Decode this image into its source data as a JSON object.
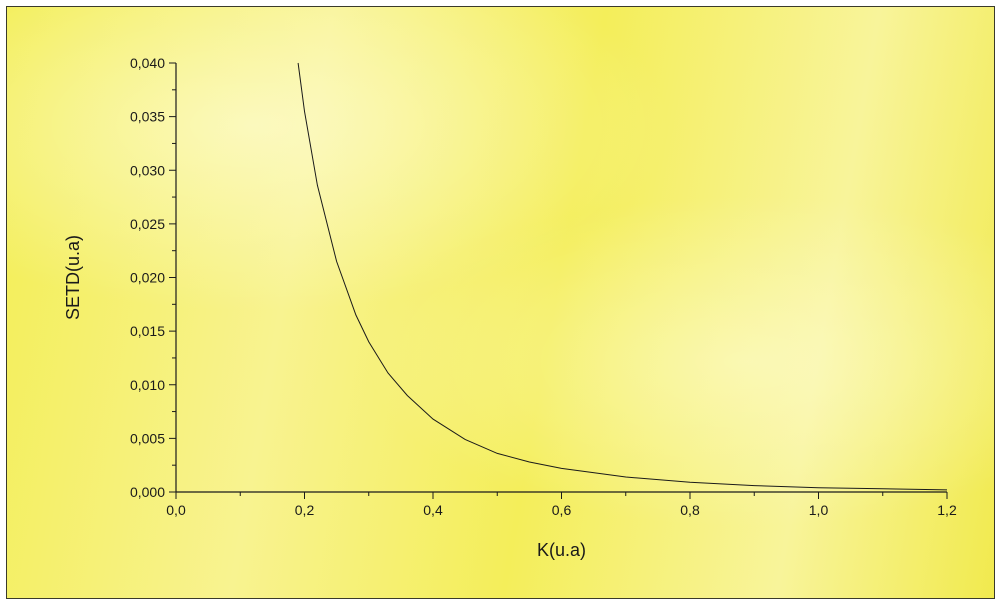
{
  "chart_data": {
    "type": "line",
    "title": "",
    "xlabel": "K(u.a)",
    "ylabel": "SETD(u.a)",
    "xlim": [
      0.0,
      1.2
    ],
    "ylim": [
      0.0,
      0.04
    ],
    "grid": false,
    "legend": "none",
    "x_ticks": [
      0.0,
      0.2,
      0.4,
      0.6,
      0.8,
      1.0,
      1.2
    ],
    "x_tick_labels": [
      "0,0",
      "0,2",
      "0,4",
      "0,6",
      "0,8",
      "1,0",
      "1,2"
    ],
    "y_ticks": [
      0.0,
      0.005,
      0.01,
      0.015,
      0.02,
      0.025,
      0.03,
      0.035,
      0.04
    ],
    "y_tick_labels": [
      "0,000",
      "0,005",
      "0,010",
      "0,015",
      "0,020",
      "0,025",
      "0,030",
      "0,035",
      "0,040"
    ],
    "series": [
      {
        "x": [
          0.19,
          0.2,
          0.22,
          0.25,
          0.28,
          0.3,
          0.33,
          0.36,
          0.4,
          0.45,
          0.5,
          0.55,
          0.6,
          0.7,
          0.8,
          0.9,
          1.0,
          1.1,
          1.2
        ],
        "y": [
          0.04,
          0.0355,
          0.0286,
          0.0215,
          0.0165,
          0.014,
          0.0111,
          0.009,
          0.0068,
          0.0049,
          0.0036,
          0.0028,
          0.0022,
          0.0014,
          0.0009,
          0.0006,
          0.0004,
          0.0003,
          0.0002
        ]
      }
    ],
    "line_color": "#1a1a1a",
    "background_color": "#f6f17a"
  }
}
